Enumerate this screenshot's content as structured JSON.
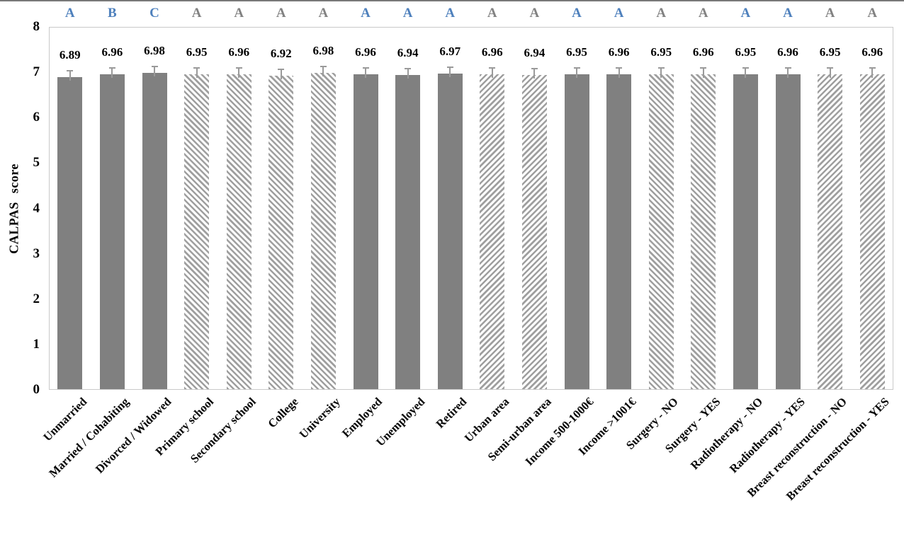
{
  "chart_data": {
    "type": "bar",
    "title": "",
    "xlabel": "",
    "ylabel": "CALPAS score",
    "ylim": [
      0,
      8
    ],
    "yticks": [
      8,
      7,
      6,
      5,
      4,
      3,
      2,
      1,
      0
    ],
    "grid": "off",
    "legend": "none",
    "categories": [
      "Unmarried",
      "Married / Cohabiting",
      "Divorced / Widowed",
      "Primary school",
      "Secondary school",
      "College",
      "University",
      "Employed",
      "Unemployed",
      "Retired",
      "Urban area",
      "Semi-urban area",
      "Income 500-1000€",
      "Income >1001€",
      "Surgery - NO",
      "Surgery - YES",
      "Radiotherapy - NO",
      "Radiotherapy - YES",
      "Breast reconstruction - NO",
      "Breast reconstruction - YES"
    ],
    "values": [
      6.89,
      6.96,
      6.98,
      6.95,
      6.96,
      6.92,
      6.98,
      6.96,
      6.94,
      6.97,
      6.96,
      6.94,
      6.95,
      6.96,
      6.95,
      6.96,
      6.95,
      6.96,
      6.95,
      6.96
    ],
    "value_labels": [
      "6.89",
      "6.96",
      "6.98",
      "6.95",
      "6.96",
      "6.92",
      "6.98",
      "6.96",
      "6.94",
      "6.97",
      "6.96",
      "6.94",
      "6.95",
      "6.96",
      "6.95",
      "6.96",
      "6.95",
      "6.96",
      "6.95",
      "6.96"
    ],
    "significance_letters": [
      "A",
      "B",
      "C",
      "A",
      "A",
      "A",
      "A",
      "A",
      "A",
      "A",
      "A",
      "A",
      "A",
      "A",
      "A",
      "A",
      "A",
      "A",
      "A",
      "A"
    ],
    "letter_colors": [
      "blue",
      "blue",
      "blue",
      "gray",
      "gray",
      "gray",
      "gray",
      "blue",
      "blue",
      "blue",
      "gray",
      "gray",
      "blue",
      "blue",
      "gray",
      "gray",
      "blue",
      "blue",
      "gray",
      "gray"
    ],
    "bar_styles": [
      "solid",
      "solid",
      "solid",
      "hatch_back",
      "hatch_back",
      "hatch_back",
      "hatch_back",
      "solid",
      "solid",
      "solid",
      "hatch_fwd",
      "hatch_fwd",
      "solid",
      "solid",
      "hatch_back",
      "hatch_back",
      "solid",
      "solid",
      "hatch_fwd",
      "hatch_fwd"
    ],
    "error_bar_approx": 0.1,
    "colors": {
      "solid_fill": "#808080",
      "hatch_stroke": "#9f9f9f",
      "letter_blue": "#4f81bd",
      "letter_gray": "#828282",
      "plot_border": "#c9c9c9",
      "error_bar": "#9a9a9a",
      "top_rule": "#787878"
    }
  }
}
